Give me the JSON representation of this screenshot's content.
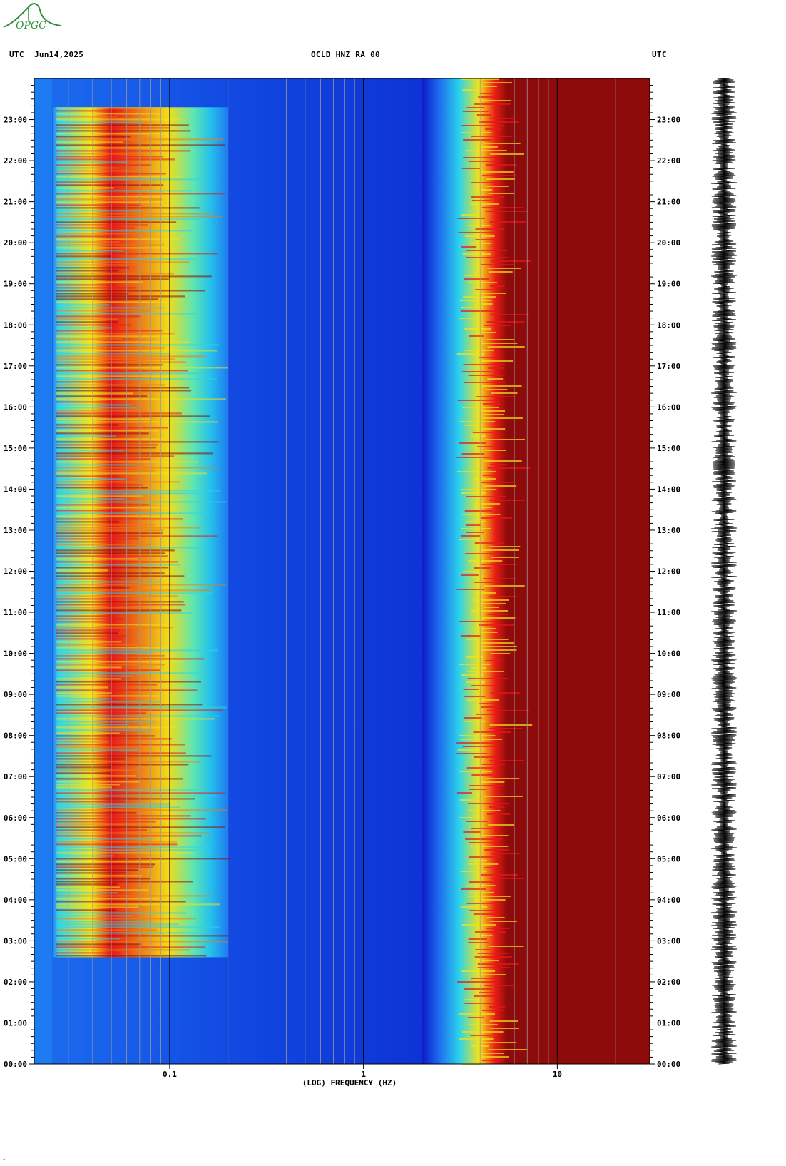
{
  "header": {
    "left_tz": "UTC",
    "date": "Jun14,2025",
    "station": "OCLD HNZ RA 00",
    "right_tz": "UTC"
  },
  "logo": {
    "text": "OPGC"
  },
  "colors": {
    "cold": "#0a1acb",
    "mid": "#1ee0e0",
    "warm": "#f2e21a",
    "hot": "#e8161b",
    "saturated": "#8f0a0a"
  },
  "chart_data": {
    "type": "heatmap",
    "title": "",
    "xlabel": "(LOG) FREQUENCY (HZ)",
    "ylabel": "",
    "x_scale": "log",
    "xlim": [
      0.02,
      30
    ],
    "x_ticks": [
      {
        "value": 0.1,
        "label": "0.1"
      },
      {
        "value": 1,
        "label": "1"
      },
      {
        "value": 10,
        "label": "10"
      }
    ],
    "y_range_hours": [
      0,
      24
    ],
    "y_ticks": [
      "00:00",
      "01:00",
      "02:00",
      "03:00",
      "04:00",
      "05:00",
      "06:00",
      "07:00",
      "08:00",
      "09:00",
      "10:00",
      "11:00",
      "12:00",
      "13:00",
      "14:00",
      "15:00",
      "16:00",
      "17:00",
      "18:00",
      "19:00",
      "20:00",
      "21:00",
      "22:00",
      "23:00"
    ],
    "colormap": "jet",
    "grid": true,
    "waveform_trace": true
  }
}
